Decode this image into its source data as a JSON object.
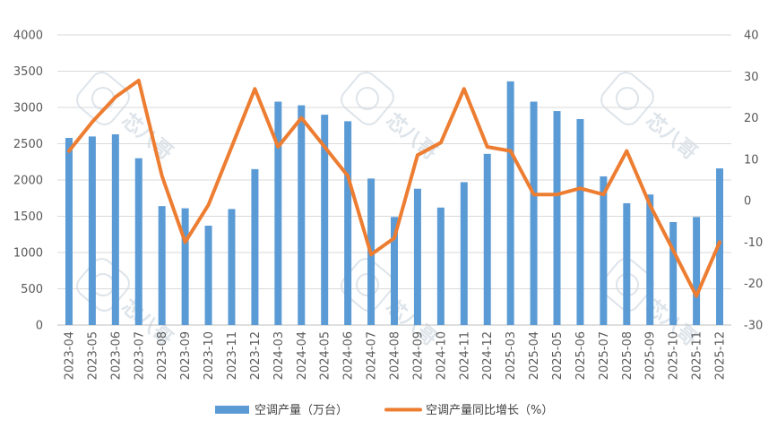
{
  "chart_data": {
    "type": "bar+line",
    "categories": [
      "2023-04",
      "2023-05",
      "2023-06",
      "2023-07",
      "2023-08",
      "2023-09",
      "2023-10",
      "2023-11",
      "2023-12",
      "2024-03",
      "2024-04",
      "2024-05",
      "2024-06",
      "2024-07",
      "2024-08",
      "2024-09",
      "2024-10",
      "2024-11",
      "2024-12",
      "2025-03",
      "2025-04",
      "2025-05",
      "2025-06",
      "2025-07",
      "2025-08",
      "2025-09",
      "2025-10",
      "2025-11",
      "2025-12"
    ],
    "series": [
      {
        "name": "空调产量（万台）",
        "type": "bar",
        "axis": "left",
        "color": "#5b9bd5",
        "values": [
          2580,
          2600,
          2630,
          2300,
          1640,
          1610,
          1370,
          1600,
          2150,
          3080,
          3030,
          2900,
          2810,
          2020,
          1490,
          1880,
          1620,
          1970,
          2360,
          3360,
          3080,
          2950,
          2840,
          2050,
          1680,
          1800,
          1420,
          1490,
          2160
        ]
      },
      {
        "name": "空调产量同比增长（%）",
        "type": "line",
        "axis": "right",
        "color": "#ed7d31",
        "values": [
          12,
          19,
          25,
          29,
          6,
          -10,
          -1,
          13,
          27,
          13,
          20,
          13,
          6,
          -13,
          -9,
          11,
          14,
          27,
          13,
          12,
          1.5,
          1.5,
          3,
          1.5,
          12,
          -1,
          -12,
          -23,
          -10
        ]
      }
    ],
    "y_left": {
      "min": 0,
      "max": 4000,
      "step": 500,
      "ticks": [
        "0",
        "500",
        "1000",
        "1500",
        "2000",
        "2500",
        "3000",
        "3500",
        "4000"
      ]
    },
    "y_right": {
      "min": -30,
      "max": 40,
      "step": 10,
      "ticks": [
        "-30",
        "-20",
        "-10",
        "0",
        "10",
        "20",
        "30",
        "40"
      ]
    },
    "legend": {
      "position": "bottom"
    },
    "grid": true
  },
  "watermark": {
    "text": "芯八哥"
  }
}
